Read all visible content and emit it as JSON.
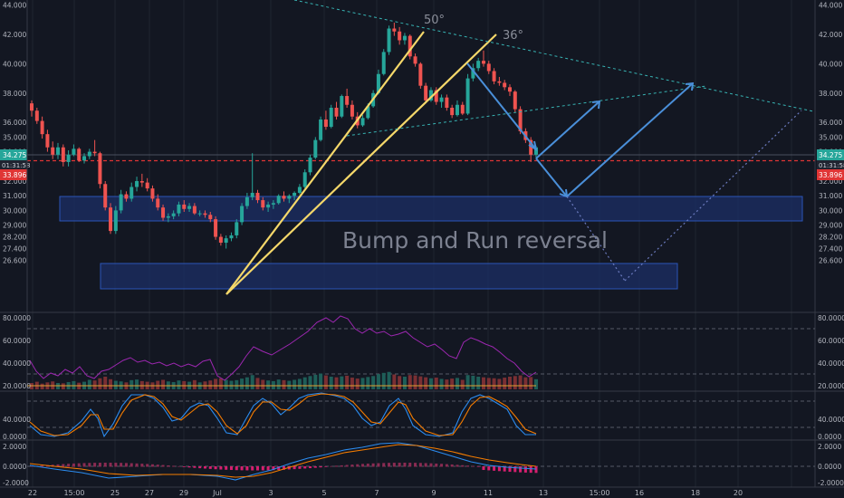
{
  "chart_data": {
    "type": "candlestick",
    "annotation_text": "Bump and Run reversal",
    "angle_labels": [
      "50°",
      "36°"
    ],
    "price_axis": {
      "range": [
        26.4,
        44.4
      ],
      "ticks": [
        "44.000",
        "42.000",
        "40.000",
        "38.000",
        "36.000",
        "35.000",
        "34.000",
        "33.000",
        "32.000",
        "31.000",
        "30.000",
        "29.000",
        "28.200",
        "27.400",
        "26.600"
      ]
    },
    "price_badges": {
      "last": "34.275",
      "countdown": "01:31:58",
      "level": "33.896"
    },
    "x_axis_labels": [
      "22",
      "15:00",
      "25",
      "27",
      "29",
      "Jul",
      "3",
      "5",
      "7",
      "9",
      "11",
      "13",
      "15:00",
      "16",
      "18",
      "20"
    ],
    "candles": [
      [
        37.3,
        37.5,
        36.4,
        36.8
      ],
      [
        36.8,
        37.0,
        35.9,
        36.1
      ],
      [
        36.1,
        36.4,
        34.9,
        35.2
      ],
      [
        35.2,
        35.5,
        34.0,
        34.3
      ],
      [
        34.3,
        34.7,
        33.5,
        33.8
      ],
      [
        33.8,
        34.6,
        33.5,
        34.3
      ],
      [
        34.3,
        34.5,
        33.0,
        33.3
      ],
      [
        33.3,
        34.1,
        33.0,
        33.8
      ],
      [
        33.8,
        34.5,
        33.7,
        34.2
      ],
      [
        34.2,
        34.3,
        33.3,
        33.4
      ],
      [
        33.4,
        33.9,
        33.2,
        33.7
      ],
      [
        33.7,
        34.2,
        33.5,
        34.0
      ],
      [
        34.0,
        34.8,
        33.7,
        33.9
      ],
      [
        33.9,
        34.0,
        31.5,
        31.8
      ],
      [
        31.8,
        32.0,
        30.0,
        30.2
      ],
      [
        30.2,
        30.5,
        28.4,
        28.6
      ],
      [
        28.6,
        30.3,
        28.4,
        30.0
      ],
      [
        30.0,
        31.4,
        29.8,
        31.1
      ],
      [
        31.1,
        31.3,
        30.6,
        30.8
      ],
      [
        30.8,
        31.9,
        30.6,
        31.6
      ],
      [
        31.6,
        32.3,
        31.3,
        32.0
      ],
      [
        32.0,
        32.5,
        31.6,
        31.9
      ],
      [
        31.9,
        32.2,
        31.3,
        31.5
      ],
      [
        31.5,
        31.7,
        30.6,
        30.8
      ],
      [
        30.8,
        31.1,
        30.0,
        30.2
      ],
      [
        30.2,
        30.4,
        29.3,
        29.5
      ],
      [
        29.5,
        29.8,
        29.2,
        29.6
      ],
      [
        29.6,
        30.0,
        29.4,
        29.8
      ],
      [
        29.8,
        30.6,
        29.6,
        30.4
      ],
      [
        30.4,
        30.7,
        29.9,
        30.1
      ],
      [
        30.1,
        30.5,
        29.9,
        30.3
      ],
      [
        30.3,
        30.5,
        29.7,
        29.8
      ],
      [
        29.8,
        30.0,
        29.6,
        29.8
      ],
      [
        29.8,
        30.0,
        29.5,
        29.7
      ],
      [
        29.7,
        29.9,
        29.2,
        29.4
      ],
      [
        29.4,
        29.6,
        28.0,
        28.2
      ],
      [
        28.2,
        28.4,
        27.6,
        27.8
      ],
      [
        27.8,
        28.3,
        27.4,
        28.1
      ],
      [
        28.1,
        28.5,
        27.9,
        28.3
      ],
      [
        28.3,
        29.4,
        28.1,
        29.2
      ],
      [
        29.2,
        30.5,
        29.0,
        30.3
      ],
      [
        30.3,
        31.2,
        30.1,
        30.9
      ],
      [
        30.9,
        33.9,
        30.7,
        31.2
      ],
      [
        31.2,
        31.4,
        30.5,
        30.7
      ],
      [
        30.7,
        30.9,
        30.0,
        30.2
      ],
      [
        30.2,
        30.6,
        29.9,
        30.4
      ],
      [
        30.4,
        30.7,
        30.1,
        30.5
      ],
      [
        30.5,
        31.1,
        30.4,
        31.0
      ],
      [
        31.0,
        31.3,
        30.6,
        30.8
      ],
      [
        30.8,
        31.1,
        30.5,
        31.0
      ],
      [
        31.0,
        31.3,
        30.7,
        31.2
      ],
      [
        31.2,
        31.8,
        31.1,
        31.6
      ],
      [
        31.6,
        32.8,
        31.5,
        32.6
      ],
      [
        32.6,
        33.8,
        32.4,
        33.6
      ],
      [
        33.6,
        35.0,
        33.5,
        34.8
      ],
      [
        34.8,
        36.4,
        34.7,
        36.2
      ],
      [
        36.2,
        36.8,
        35.5,
        35.7
      ],
      [
        35.7,
        37.2,
        35.6,
        37.0
      ],
      [
        37.0,
        37.4,
        36.2,
        36.4
      ],
      [
        36.4,
        37.9,
        36.3,
        37.8
      ],
      [
        37.8,
        38.3,
        37.0,
        37.2
      ],
      [
        37.2,
        37.5,
        36.2,
        36.4
      ],
      [
        36.4,
        36.7,
        35.6,
        35.8
      ],
      [
        35.8,
        36.5,
        35.7,
        36.3
      ],
      [
        36.3,
        37.3,
        36.2,
        37.1
      ],
      [
        37.1,
        38.2,
        37.0,
        38.0
      ],
      [
        38.0,
        39.6,
        37.9,
        39.3
      ],
      [
        39.3,
        41.0,
        39.2,
        40.8
      ],
      [
        40.8,
        42.6,
        40.6,
        42.4
      ],
      [
        42.4,
        42.8,
        41.9,
        42.2
      ],
      [
        42.2,
        42.5,
        41.3,
        41.6
      ],
      [
        41.6,
        42.1,
        41.3,
        41.9
      ],
      [
        41.9,
        42.0,
        40.3,
        40.5
      ],
      [
        40.5,
        40.7,
        39.8,
        40.0
      ],
      [
        40.0,
        40.1,
        38.3,
        38.5
      ],
      [
        38.5,
        38.7,
        37.3,
        37.5
      ],
      [
        37.5,
        38.4,
        37.4,
        38.2
      ],
      [
        38.2,
        38.4,
        37.2,
        37.4
      ],
      [
        37.4,
        37.9,
        37.0,
        37.7
      ],
      [
        37.7,
        37.9,
        36.8,
        37.0
      ],
      [
        37.0,
        37.2,
        36.3,
        36.5
      ],
      [
        36.5,
        37.5,
        36.4,
        37.2
      ],
      [
        37.2,
        37.4,
        36.5,
        36.6
      ],
      [
        36.6,
        39.3,
        36.5,
        39.0
      ],
      [
        39.0,
        40.0,
        38.8,
        39.7
      ],
      [
        39.7,
        40.4,
        39.5,
        40.2
      ],
      [
        40.2,
        40.9,
        39.8,
        40.0
      ],
      [
        40.0,
        40.2,
        39.3,
        39.5
      ],
      [
        39.5,
        39.7,
        38.6,
        38.8
      ],
      [
        38.8,
        39.1,
        38.5,
        38.7
      ],
      [
        38.7,
        38.9,
        38.2,
        38.4
      ],
      [
        38.4,
        38.6,
        37.8,
        38.1
      ],
      [
        38.1,
        38.2,
        36.7,
        36.9
      ],
      [
        36.9,
        37.1,
        35.2,
        35.4
      ],
      [
        35.4,
        35.6,
        34.6,
        34.8
      ],
      [
        34.8,
        35.0,
        33.3,
        33.8
      ],
      [
        33.8,
        34.4,
        33.6,
        34.3
      ]
    ],
    "volume": [
      20,
      24,
      18,
      22,
      25,
      20,
      19,
      23,
      26,
      21,
      24,
      30,
      28,
      35,
      40,
      32,
      27,
      25,
      22,
      29,
      31,
      26,
      24,
      22,
      27,
      30,
      25,
      23,
      28,
      26,
      24,
      29,
      22,
      25,
      28,
      33,
      35,
      30,
      27,
      29,
      34,
      38,
      45,
      36,
      30,
      28,
      26,
      31,
      29,
      27,
      30,
      33,
      38,
      42,
      46,
      50,
      44,
      40,
      38,
      41,
      43,
      37,
      34,
      36,
      39,
      42,
      48,
      52,
      55,
      47,
      42,
      40,
      45,
      44,
      41,
      38,
      35,
      37,
      33,
      31,
      34,
      36,
      30,
      45,
      43,
      40,
      38,
      36,
      35,
      33,
      37,
      40,
      42,
      44,
      38,
      39,
      32
    ]
  }
}
